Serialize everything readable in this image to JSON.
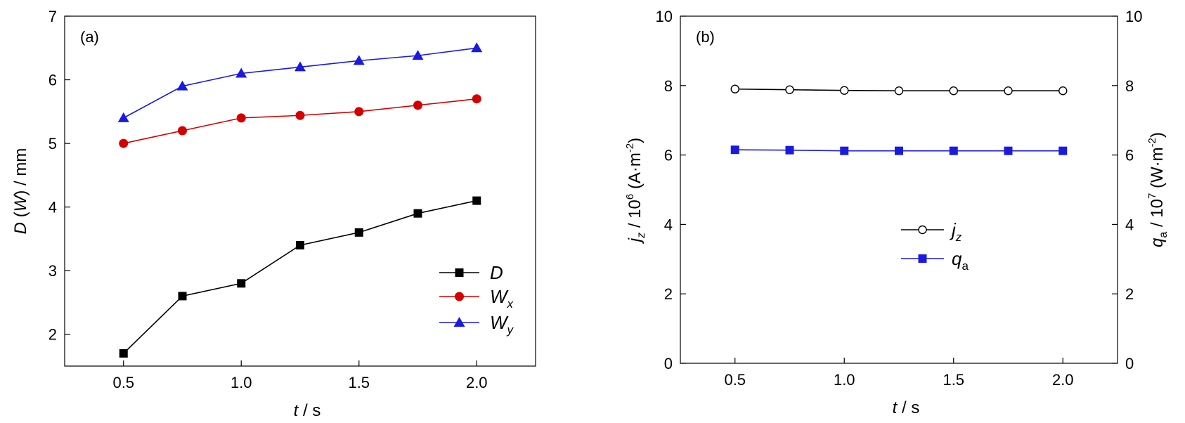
{
  "chart_data": [
    {
      "type": "line",
      "panel_label": "(a)",
      "x": [
        0.5,
        0.75,
        1.0,
        1.25,
        1.5,
        1.75,
        2.0
      ],
      "xlabel": {
        "var": "t",
        "unit": " / s"
      },
      "ylabel": {
        "main": "D",
        "paren_open": " (",
        "inner": "W",
        "paren_close": ")",
        "unit": " / mm"
      },
      "xlim": [
        0.25,
        2.25
      ],
      "ylim": [
        1.5,
        7
      ],
      "xticks": [
        "0.5",
        "1.0",
        "1.5",
        "2.0"
      ],
      "xtick_values": [
        0.5,
        1.0,
        1.5,
        2.0
      ],
      "yticks": [
        "2",
        "3",
        "4",
        "5",
        "6",
        "7"
      ],
      "ytick_values": [
        2,
        3,
        4,
        5,
        6,
        7
      ],
      "legend_position": "bottom-right",
      "grid": false,
      "series": [
        {
          "name": "D",
          "sub": "",
          "color": "#000000",
          "marker": "square-filled",
          "values": [
            1.7,
            2.6,
            2.8,
            3.4,
            3.6,
            3.9,
            4.1
          ]
        },
        {
          "name": "W",
          "sub": "x",
          "color": "#d40000",
          "marker": "circle-filled",
          "values": [
            5.0,
            5.2,
            5.4,
            5.44,
            5.5,
            5.6,
            5.7
          ]
        },
        {
          "name": "W",
          "sub": "y",
          "color": "#1a1adf",
          "marker": "triangle-filled",
          "values": [
            5.4,
            5.9,
            6.1,
            6.2,
            6.3,
            6.38,
            6.5
          ]
        }
      ]
    },
    {
      "type": "line",
      "panel_label": "(b)",
      "x": [
        0.5,
        0.75,
        1.0,
        1.25,
        1.5,
        1.75,
        2.0
      ],
      "xlabel": {
        "var": "t",
        "unit": " / s"
      },
      "ylabel_left": {
        "var": "j",
        "sub": "z",
        "mid": " / 10",
        "exp": "6",
        "unit_open": " (A·m",
        "unit_exp": "-2",
        "unit_close": ")"
      },
      "ylabel_right": {
        "var": "q",
        "sub": "a",
        "mid": " / 10",
        "exp": "7",
        "unit_open": " (W·m",
        "unit_exp": "-2",
        "unit_close": ")"
      },
      "xlim": [
        0.25,
        2.25
      ],
      "ylim": [
        0,
        10
      ],
      "xticks": [
        "0.5",
        "1.0",
        "1.5",
        "2.0"
      ],
      "xtick_values": [
        0.5,
        1.0,
        1.5,
        2.0
      ],
      "yticks": [
        "0",
        "2",
        "4",
        "6",
        "8",
        "10"
      ],
      "ytick_values": [
        0,
        2,
        4,
        6,
        8,
        10
      ],
      "y2ticks": [
        "0",
        "2",
        "4",
        "6",
        "8",
        "10"
      ],
      "legend_position": "center-right",
      "grid": false,
      "series": [
        {
          "name": "j",
          "sub": "z",
          "axis": "left",
          "color": "#000000",
          "marker": "circle-open",
          "values": [
            7.9,
            7.88,
            7.86,
            7.85,
            7.85,
            7.85,
            7.85
          ]
        },
        {
          "name": "q",
          "sub": "a",
          "axis": "right",
          "color": "#1a1adf",
          "marker": "square-filled",
          "values": [
            6.15,
            6.14,
            6.12,
            6.12,
            6.12,
            6.12,
            6.12
          ]
        }
      ]
    }
  ]
}
